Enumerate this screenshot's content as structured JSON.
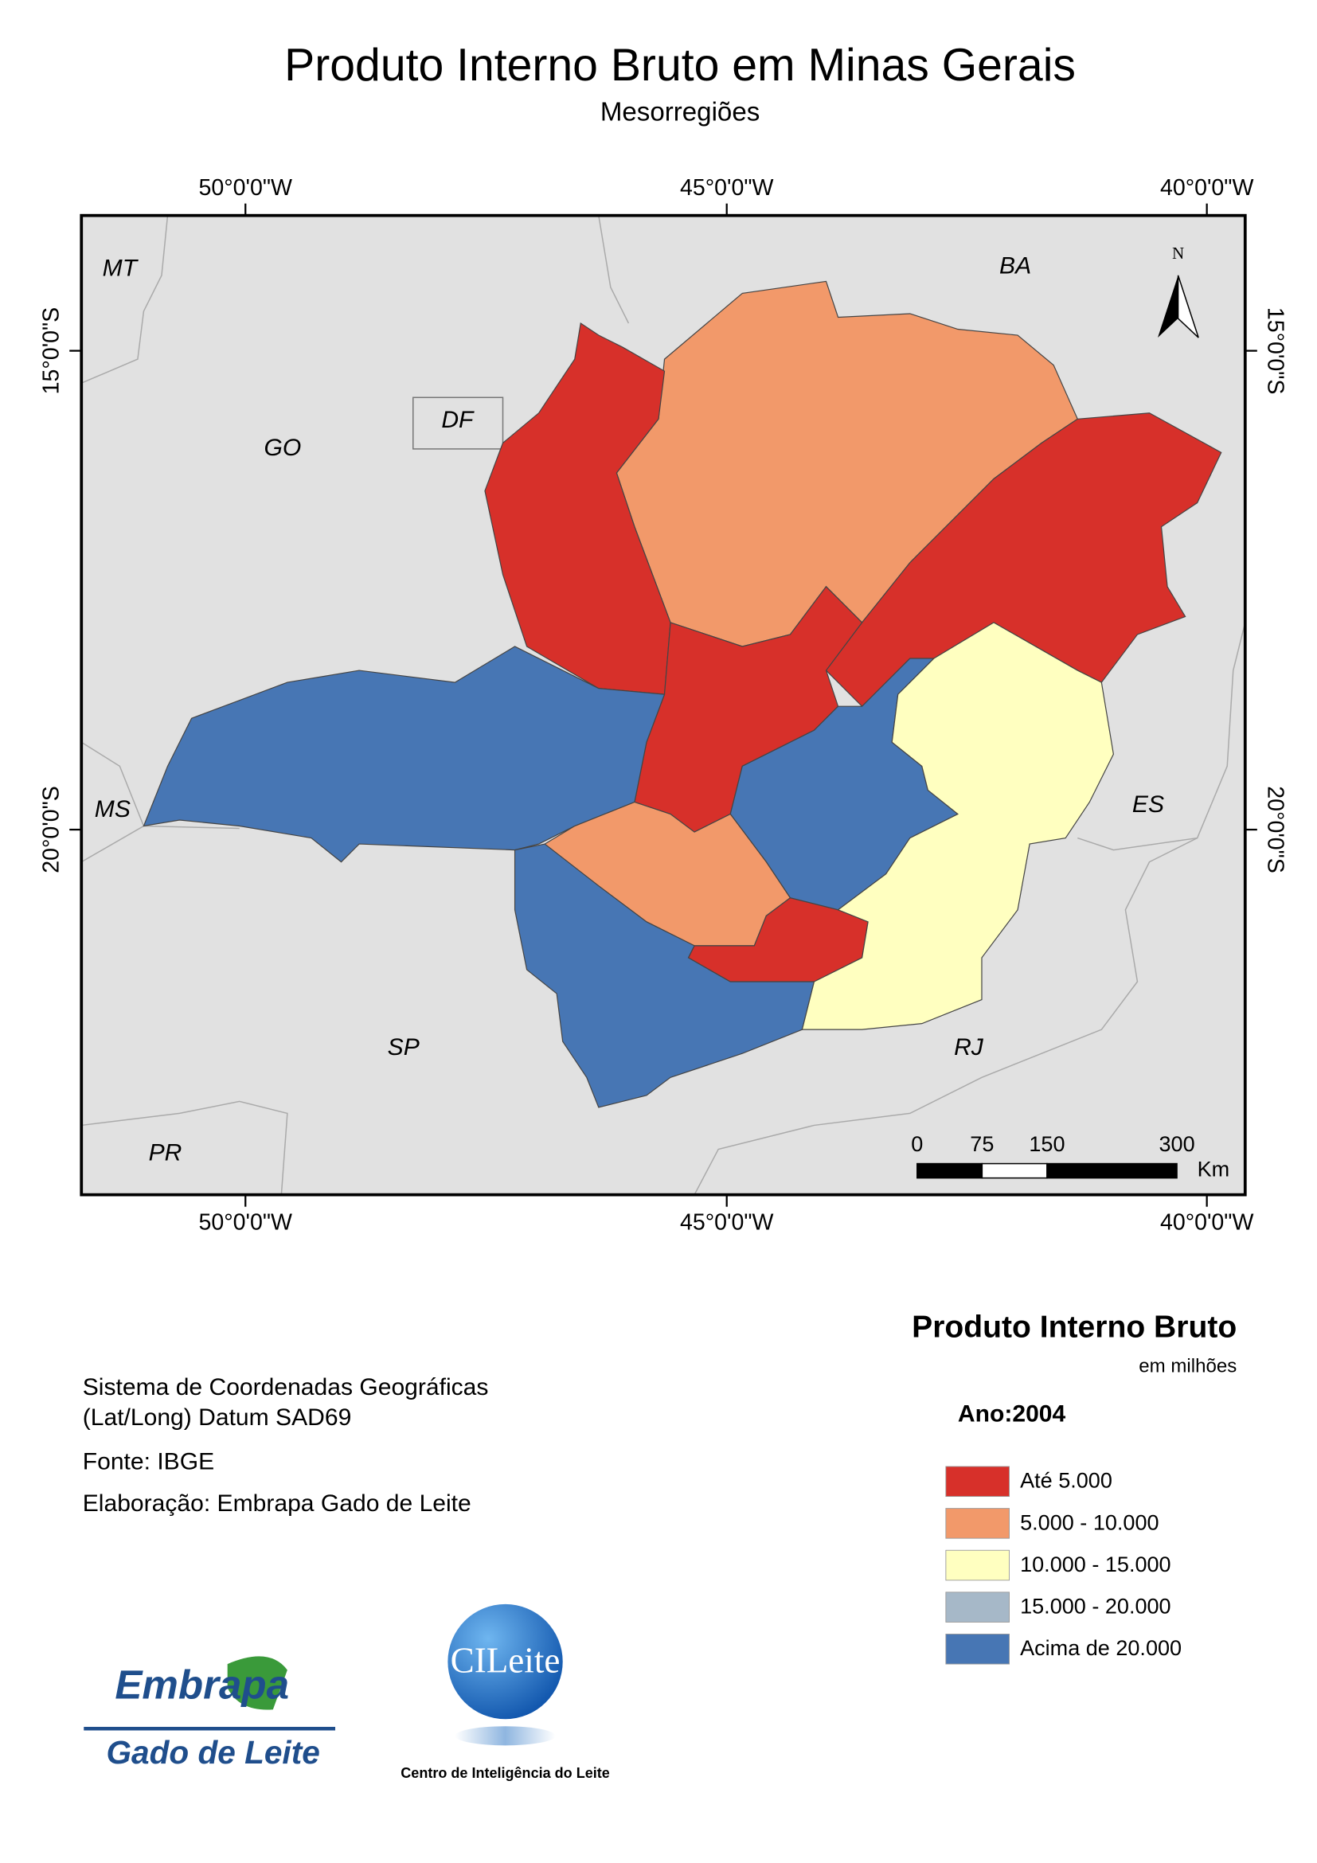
{
  "title": "Produto Interno Bruto em Minas Gerais",
  "subtitle": "Mesorregiões",
  "map": {
    "longitude_labels": [
      "50°0'0\"W",
      "45°0'0\"W",
      "40°0'0\"W"
    ],
    "latitude_labels": [
      "15°0'0\"S",
      "20°0'0\"S"
    ],
    "place_labels": [
      "MT",
      "BA",
      "GO",
      "DF",
      "MS",
      "ES",
      "SP",
      "RJ",
      "PR"
    ],
    "north_label": "N",
    "scale_bar": {
      "ticks": [
        0,
        75,
        150,
        300
      ],
      "unit": "Km"
    }
  },
  "legend": {
    "title": "Produto Interno Bruto",
    "subtitle": "em milhões",
    "year": "Ano:2004",
    "items": [
      {
        "label": "Até 5.000",
        "color": "#d7302a"
      },
      {
        "label": "5.000 - 10.000",
        "color": "#f2996a"
      },
      {
        "label": "10.000 - 15.000",
        "color": "#ffffc0"
      },
      {
        "label": "15.000 - 20.000",
        "color": "#a6b8c8"
      },
      {
        "label": "Acima de 20.000",
        "color": "#4776b4"
      }
    ]
  },
  "notes": [
    "Sistema de Coordenadas Geográficas",
    "(Lat/Long) Datum SAD69",
    "Fonte: IBGE",
    "Elaboração: Embrapa Gado de Leite"
  ],
  "logos": {
    "embrapa": "Embrapa",
    "embrapa_unit": "Gado de Leite",
    "cileite": "CILeite",
    "cileite_name": "Centro de Inteligência do Leite"
  }
}
